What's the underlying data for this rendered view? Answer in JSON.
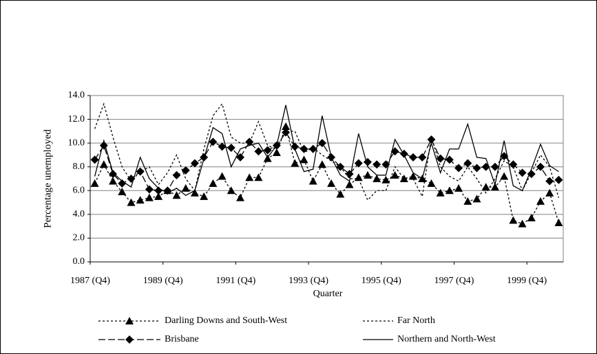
{
  "chart_data": {
    "type": "line",
    "y_label": "Percentage unemployed",
    "x_label": "Quarter",
    "categories": [
      "1987 (Q4)",
      null,
      null,
      null,
      null,
      null,
      null,
      null,
      "1989 (Q4)",
      null,
      null,
      null,
      null,
      null,
      null,
      null,
      "1991 (Q4)",
      null,
      null,
      null,
      null,
      null,
      null,
      null,
      "1993 (Q4)",
      null,
      null,
      null,
      null,
      null,
      null,
      null,
      "1995 (Q4)",
      null,
      null,
      null,
      null,
      null,
      null,
      null,
      "1997 (Q4)",
      null,
      null,
      null,
      null,
      null,
      null,
      null,
      "1999 (Q4)",
      null,
      null,
      null
    ],
    "ylim": [
      0,
      14
    ],
    "yticks": [
      {
        "value": 0,
        "label": "0.0"
      },
      {
        "value": 2,
        "label": "2.0"
      },
      {
        "value": 4,
        "label": "4.0"
      },
      {
        "value": 6,
        "label": "6.0"
      },
      {
        "value": 8,
        "label": "8.0"
      },
      {
        "value": 10,
        "label": "10.0"
      },
      {
        "value": 12,
        "label": "12.0"
      },
      {
        "value": 14,
        "label": "14.0"
      }
    ],
    "grid": true,
    "series": [
      {
        "name": "Darling Downs and South-West",
        "color": "#000000",
        "dash": "3,3",
        "marker": "triangle",
        "values": [
          6.6,
          8.2,
          6.8,
          5.9,
          5.0,
          5.2,
          5.4,
          5.5,
          6.0,
          5.6,
          6.2,
          5.8,
          5.5,
          6.6,
          7.2,
          6.0,
          5.4,
          7.1,
          7.1,
          8.7,
          9.2,
          11.4,
          8.3,
          8.6,
          6.8,
          8.2,
          6.6,
          5.7,
          6.5,
          7.1,
          7.3,
          7.0,
          6.9,
          7.3,
          7.0,
          7.2,
          7.0,
          6.6,
          5.8,
          6.0,
          6.2,
          5.1,
          5.3,
          6.3,
          6.3,
          7.2,
          3.5,
          3.2,
          3.7,
          5.1,
          5.8,
          3.3
        ]
      },
      {
        "name": "Far North",
        "color": "#000000",
        "dash": "3,3",
        "marker": "none",
        "values": [
          11.2,
          13.3,
          10.5,
          8.0,
          6.8,
          7.6,
          8.0,
          6.5,
          7.5,
          9.0,
          7.0,
          6.0,
          9.5,
          12.3,
          13.3,
          10.5,
          10.0,
          10.0,
          11.8,
          9.8,
          9.5,
          11.0,
          11.0,
          9.2,
          9.6,
          9.0,
          8.5,
          8.0,
          7.0,
          7.0,
          5.2,
          6.0,
          6.0,
          8.0,
          7.0,
          7.0,
          5.5,
          10.5,
          8.0,
          7.2,
          6.8,
          8.0,
          7.0,
          5.8,
          7.0,
          8.5,
          8.0,
          6.0,
          7.5,
          9.0,
          8.0,
          5.4
        ]
      },
      {
        "name": "Brisbane",
        "color": "#000000",
        "dash": "10,4",
        "marker": "diamond",
        "values": [
          8.6,
          9.8,
          7.4,
          6.6,
          7.0,
          7.6,
          6.1,
          6.0,
          6.0,
          7.3,
          7.7,
          8.3,
          8.8,
          10.1,
          9.7,
          9.6,
          8.8,
          10.1,
          9.3,
          9.4,
          9.8,
          10.9,
          9.7,
          9.5,
          9.5,
          10.0,
          8.8,
          8.0,
          7.4,
          8.3,
          8.4,
          8.2,
          8.2,
          9.3,
          9.1,
          8.8,
          8.8,
          10.3,
          8.7,
          8.6,
          7.9,
          8.3,
          7.9,
          8.0,
          8.0,
          8.9,
          8.2,
          7.5,
          7.4,
          8.0,
          6.8,
          6.9
        ]
      },
      {
        "name": "Northern and North-West",
        "color": "#000000",
        "dash": "none",
        "marker": "none",
        "values": [
          7.2,
          10.2,
          7.5,
          6.8,
          6.3,
          8.8,
          7.0,
          6.2,
          5.8,
          6.2,
          5.6,
          6.0,
          8.7,
          11.3,
          10.8,
          8.0,
          9.5,
          9.8,
          10.0,
          8.8,
          9.8,
          13.2,
          9.5,
          7.6,
          7.8,
          12.3,
          8.8,
          7.3,
          6.8,
          10.8,
          8.0,
          7.3,
          7.3,
          10.3,
          9.0,
          7.5,
          7.0,
          10.0,
          7.5,
          9.5,
          9.5,
          11.6,
          8.8,
          8.7,
          6.5,
          10.2,
          6.4,
          6.0,
          7.8,
          9.9,
          8.1,
          7.6
        ]
      }
    ]
  }
}
